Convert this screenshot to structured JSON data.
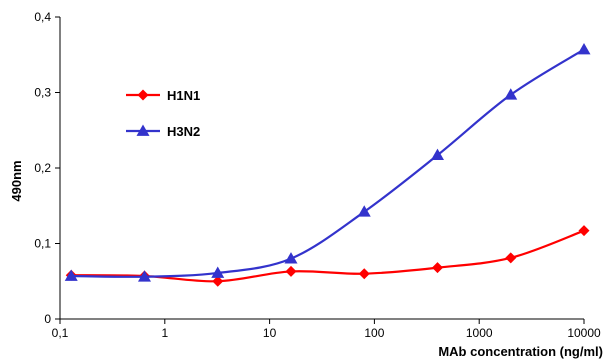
{
  "chart_data": {
    "type": "line",
    "title": "",
    "xlabel": "MAb concentration (ng/ml)",
    "ylabel": "490nm",
    "x_scale": "log",
    "xlim": [
      0.1,
      10000
    ],
    "ylim": [
      0,
      0.4
    ],
    "x_ticks": [
      0.1,
      1,
      10,
      100,
      1000,
      10000
    ],
    "x_tick_labels": [
      "0,1",
      "1",
      "10",
      "100",
      "1000",
      "10000"
    ],
    "y_ticks": [
      0,
      0.1,
      0.2,
      0.3,
      0.4
    ],
    "y_tick_labels": [
      "0",
      "0,1",
      "0,2",
      "0,3",
      "0,4"
    ],
    "grid": false,
    "legend_position": "top-left",
    "x": [
      0.128,
      0.64,
      3.2,
      16,
      80,
      400,
      2000,
      10000
    ],
    "series": [
      {
        "name": "H1N1",
        "color": "#ff0000",
        "marker": "diamond",
        "values": [
          0.058,
          0.057,
          0.05,
          0.063,
          0.06,
          0.068,
          0.081,
          0.117
        ]
      },
      {
        "name": "H3N2",
        "color": "#3333cc",
        "marker": "triangle",
        "values": [
          0.057,
          0.056,
          0.061,
          0.08,
          0.142,
          0.217,
          0.297,
          0.357
        ]
      }
    ]
  }
}
